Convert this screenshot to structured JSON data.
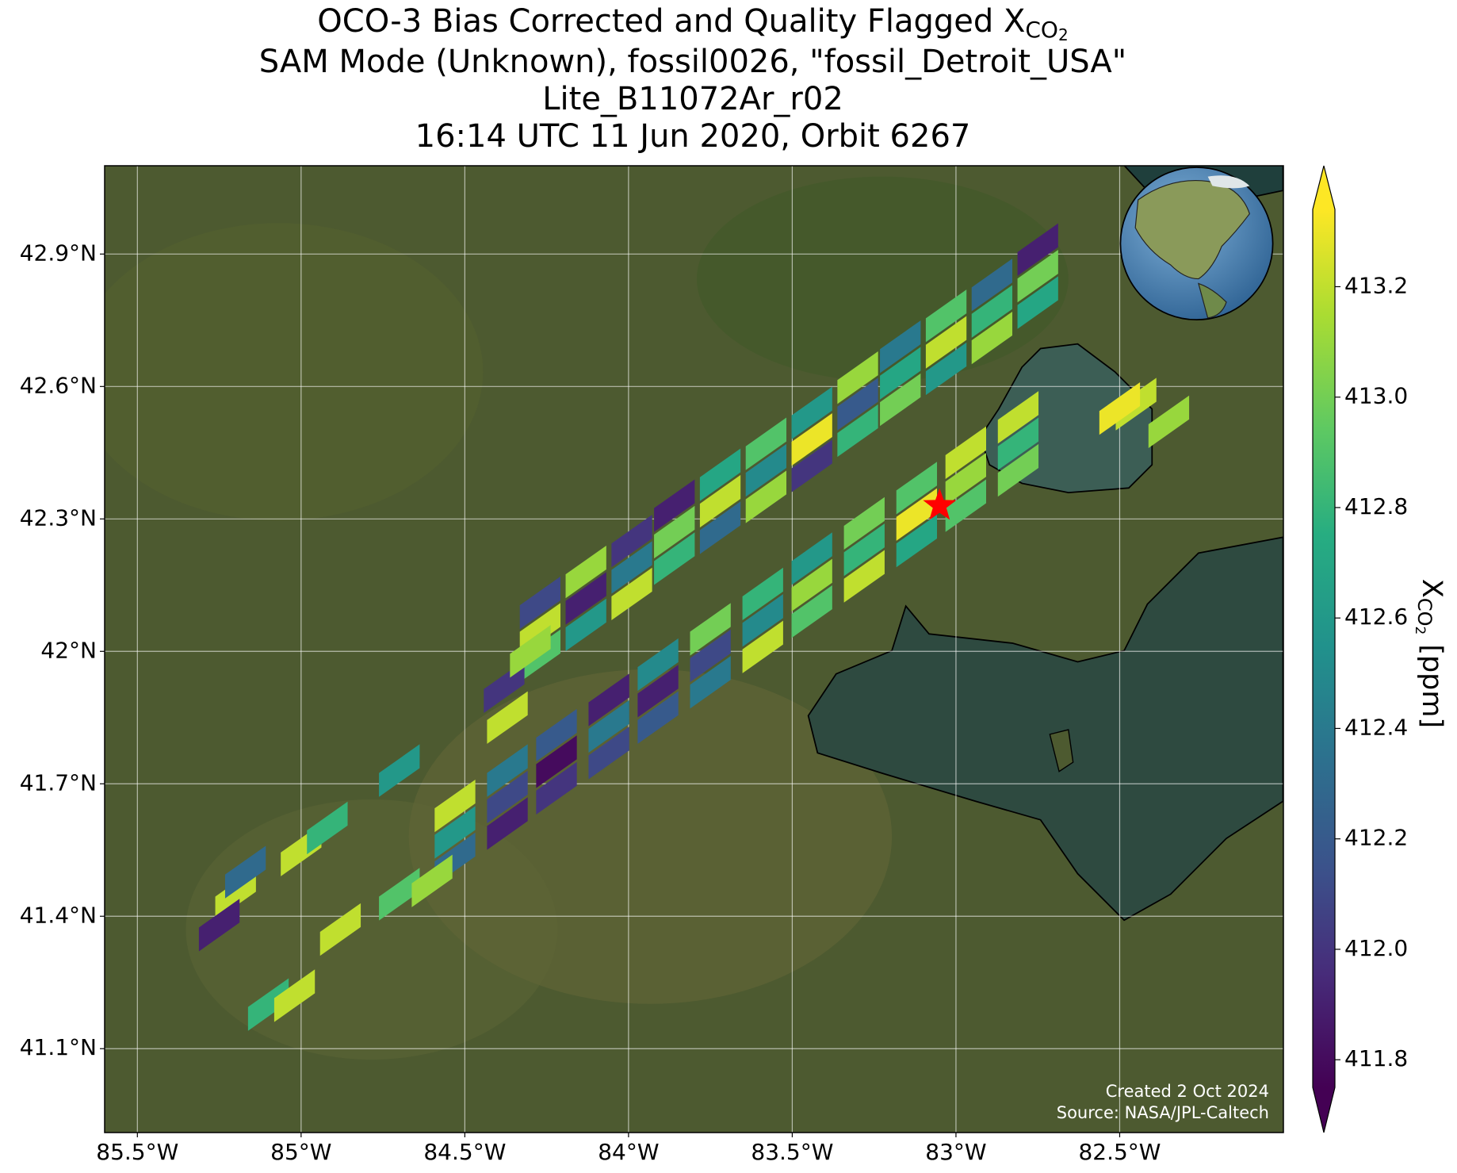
{
  "chart_data": {
    "type": "map",
    "title_line1": {
      "text": "OCO-3 Bias Corrected and Quality Flagged X",
      "sub": "CO",
      "subsub": "2"
    },
    "subtitle_lines": [
      "SAM Mode (Unknown), fossil0026, \"fossil_Detroit_USA\"",
      "Lite_B11072Ar_r02",
      "16:14 UTC 11 Jun 2020, Orbit 6267"
    ],
    "xlim": [
      -85.6,
      -82.0
    ],
    "ylim": [
      40.91,
      43.1
    ],
    "xticks": [
      {
        "value": -85.5,
        "label": "85.5°W"
      },
      {
        "value": -85,
        "label": "85°W"
      },
      {
        "value": -84.5,
        "label": "84.5°W"
      },
      {
        "value": -84,
        "label": "84°W"
      },
      {
        "value": -83.5,
        "label": "83.5°W"
      },
      {
        "value": -83,
        "label": "83°W"
      },
      {
        "value": -82.5,
        "label": "82.5°W"
      }
    ],
    "yticks": [
      {
        "value": 42.9,
        "label": "42.9°N"
      },
      {
        "value": 42.6,
        "label": "42.6°N"
      },
      {
        "value": 42.3,
        "label": "42.3°N"
      },
      {
        "value": 42,
        "label": "42°N"
      },
      {
        "value": 41.7,
        "label": "41.7°N"
      },
      {
        "value": 41.4,
        "label": "41.4°N"
      },
      {
        "value": 41.1,
        "label": "41.1°N"
      }
    ],
    "grid": true,
    "target": {
      "lon": -83.05,
      "lat": 42.33,
      "color": "#ff0000"
    },
    "colorbar": {
      "label": {
        "text": "X",
        "sub": "CO",
        "subsub": "2",
        "unit": "[ppm]"
      },
      "lim": [
        411.75,
        413.34
      ],
      "colormap": "viridis",
      "extend": "both",
      "ticks": [
        413.2,
        {
          "value": 413,
          "label": "413.0"
        },
        412.8,
        412.6,
        412.4,
        412.2,
        {
          "value": 412,
          "label": "412.0"
        },
        411.8
      ]
    },
    "soundings": {
      "lon": [
        -84.27,
        -84.27,
        -84.27,
        -84.13,
        -84.13,
        -84.13,
        -83.99,
        -83.99,
        -83.99,
        -83.86,
        -83.86,
        -83.86,
        -83.72,
        -83.72,
        -83.72,
        -83.58,
        -83.58,
        -83.58,
        -83.44,
        -83.44,
        -83.44,
        -83.3,
        -83.3,
        -83.3,
        -83.17,
        -83.17,
        -83.17,
        -83.03,
        -83.03,
        -83.03,
        -82.89,
        -82.89,
        -82.89,
        -82.75,
        -82.75,
        -82.75,
        -84.53,
        -84.53,
        -84.53,
        -84.37,
        -84.37,
        -84.37,
        -84.22,
        -84.22,
        -84.22,
        -84.06,
        -84.06,
        -84.06,
        -83.91,
        -83.91,
        -83.91,
        -83.75,
        -83.75,
        -83.75,
        -83.59,
        -83.59,
        -83.59,
        -83.44,
        -83.44,
        -83.44,
        -83.28,
        -83.28,
        -83.28,
        -83.12,
        -83.12,
        -83.12,
        -82.97,
        -82.97,
        -82.97,
        -82.81,
        -82.81,
        -82.81,
        -85.2,
        -85.17,
        -85.25,
        -85.0,
        -84.92,
        -84.7,
        -84.6,
        -84.88,
        -85.1,
        -85.02,
        -84.7,
        -82.45,
        -82.35,
        -82.5,
        -84.38,
        -84.37,
        -84.3
      ],
      "lat": [
        41.99,
        42.05,
        42.11,
        42.06,
        42.12,
        42.18,
        42.13,
        42.19,
        42.25,
        42.21,
        42.27,
        42.33,
        42.28,
        42.34,
        42.4,
        42.35,
        42.41,
        42.47,
        42.42,
        42.48,
        42.54,
        42.5,
        42.56,
        42.62,
        42.57,
        42.63,
        42.69,
        42.64,
        42.7,
        42.76,
        42.71,
        42.77,
        42.83,
        42.79,
        42.85,
        42.91,
        41.53,
        41.59,
        41.65,
        41.61,
        41.67,
        41.73,
        41.69,
        41.75,
        41.81,
        41.77,
        41.83,
        41.89,
        41.85,
        41.91,
        41.97,
        41.93,
        41.99,
        42.05,
        42.01,
        42.07,
        42.13,
        42.09,
        42.15,
        42.21,
        42.17,
        42.23,
        42.29,
        42.25,
        42.31,
        42.37,
        42.33,
        42.39,
        42.45,
        42.41,
        42.47,
        42.53,
        41.45,
        41.5,
        41.38,
        41.55,
        41.6,
        41.45,
        41.48,
        41.37,
        41.2,
        41.22,
        41.73,
        42.56,
        42.52,
        42.55,
        41.92,
        41.85,
        42.0
      ],
      "xco2": [
        412.9,
        413.2,
        412.1,
        412.6,
        411.9,
        413.1,
        413.2,
        412.4,
        412.0,
        412.8,
        413.0,
        411.9,
        412.3,
        413.2,
        412.7,
        413.1,
        412.5,
        412.9,
        412.0,
        413.3,
        412.6,
        412.8,
        412.2,
        413.1,
        413.0,
        412.7,
        412.4,
        412.6,
        413.2,
        412.9,
        413.1,
        412.8,
        412.3,
        412.7,
        413.0,
        411.9,
        412.3,
        412.6,
        413.2,
        411.9,
        412.1,
        412.4,
        412.0,
        411.8,
        412.2,
        412.1,
        412.4,
        411.9,
        412.2,
        411.9,
        412.5,
        412.4,
        412.1,
        413.0,
        413.2,
        412.5,
        412.8,
        412.9,
        413.1,
        412.6,
        413.2,
        412.8,
        413.0,
        412.7,
        413.3,
        412.9,
        412.9,
        413.1,
        413.2,
        413.0,
        412.8,
        413.2,
        413.2,
        412.3,
        411.9,
        413.2,
        412.8,
        412.9,
        413.1,
        413.2,
        412.8,
        413.2,
        412.6,
        413.2,
        413.1,
        413.3,
        412.0,
        413.2,
        413.1
      ]
    },
    "credits": [
      "Created 2 Oct 2024",
      "Source: NASA/JPL-Caltech"
    ]
  }
}
